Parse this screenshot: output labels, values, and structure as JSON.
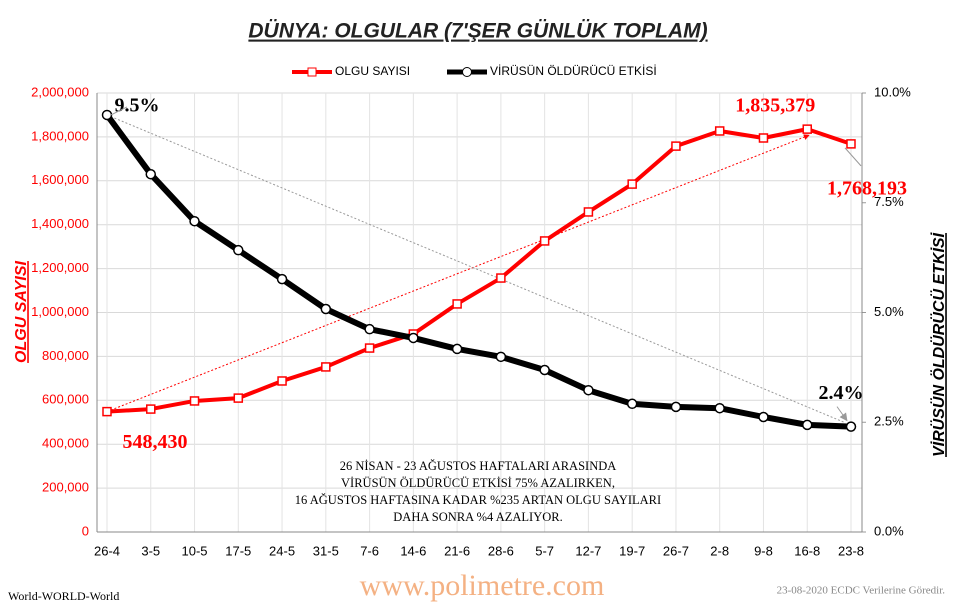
{
  "chart_data": {
    "type": "line",
    "title": "DÜNYA: OLGULAR (7'ŞER GÜNLÜK TOPLAM)",
    "y_label": "OLGU SAYISI",
    "y2_label": "VİRÜSÜN ÖLDÜRÜCÜ ETKİSİ",
    "categories": [
      "26-4",
      "3-5",
      "10-5",
      "17-5",
      "24-5",
      "31-5",
      "7-6",
      "14-6",
      "21-6",
      "28-6",
      "5-7",
      "12-7",
      "19-7",
      "26-7",
      "2-8",
      "9-8",
      "16-8",
      "23-8"
    ],
    "series": [
      {
        "name": "OLGU SAYISI",
        "color": "#ff0000",
        "marker": "square",
        "values": [
          548430,
          560000,
          597000,
          610000,
          688000,
          752000,
          838000,
          902000,
          1039000,
          1157000,
          1326000,
          1458000,
          1585000,
          1758000,
          1827000,
          1795000,
          1835379,
          1768193
        ],
        "value_labels": [
          "548,430",
          null,
          null,
          null,
          null,
          null,
          null,
          null,
          null,
          null,
          null,
          null,
          null,
          null,
          null,
          null,
          "1,835,379",
          "1,768,193"
        ]
      },
      {
        "name": "VİRÜSÜN ÖLDÜRÜCÜ ETKİSİ",
        "color": "#000000",
        "marker": "circle",
        "axis": "y2",
        "values": [
          9.5,
          8.15,
          7.08,
          6.42,
          5.76,
          5.08,
          4.62,
          4.42,
          4.17,
          3.99,
          3.69,
          3.23,
          2.92,
          2.85,
          2.82,
          2.62,
          2.44,
          2.4
        ],
        "value_labels": [
          "9.5%",
          null,
          null,
          null,
          null,
          null,
          null,
          null,
          null,
          null,
          null,
          null,
          null,
          null,
          null,
          null,
          null,
          "2.4%"
        ]
      }
    ],
    "ylim": [
      0,
      2000000
    ],
    "yticks": [
      0,
      {
        "value": 200000,
        "label": "200,000"
      },
      {
        "value": 400000,
        "label": "400,000"
      },
      {
        "value": 600000,
        "label": "600,000"
      },
      {
        "value": 800000,
        "label": "800,000"
      },
      {
        "value": 1000000,
        "label": "1,000,000"
      },
      {
        "value": 1200000,
        "label": "1,200,000"
      },
      {
        "value": 1400000,
        "label": "1,400,000"
      },
      {
        "value": 1600000,
        "label": "1,600,000"
      },
      {
        "value": 1800000,
        "label": "1,800,000"
      },
      {
        "value": 2000000,
        "label": "2,000,000"
      }
    ],
    "y2lim": [
      0,
      10
    ],
    "y2ticks": [
      {
        "value": 0,
        "label": "0.0%"
      },
      {
        "value": 2.5,
        "label": "2.5%"
      },
      {
        "value": 5,
        "label": "5.0%"
      },
      {
        "value": 7.5,
        "label": "7.5%"
      },
      {
        "value": 10,
        "label": "10.0%"
      }
    ],
    "grid": true,
    "legend": "top",
    "annotation": [
      "26 NİSAN - 23 AĞUSTOS HAFTALARI ARASINDA",
      "VİRÜSÜN ÖLDÜRÜCÜ ETKİSİ 75% AZALIRKEN,",
      "16 AĞUSTOS HAFTASINA KADAR %235 ARTAN OLGU SAYILARI",
      "DAHA SONRA %4 AZALIYOR."
    ],
    "footer_left": "World-WORLD-World",
    "footer_center": "www.polimetre.com",
    "footer_right": "23-08-2020 ECDC Verilerine Göredir."
  }
}
